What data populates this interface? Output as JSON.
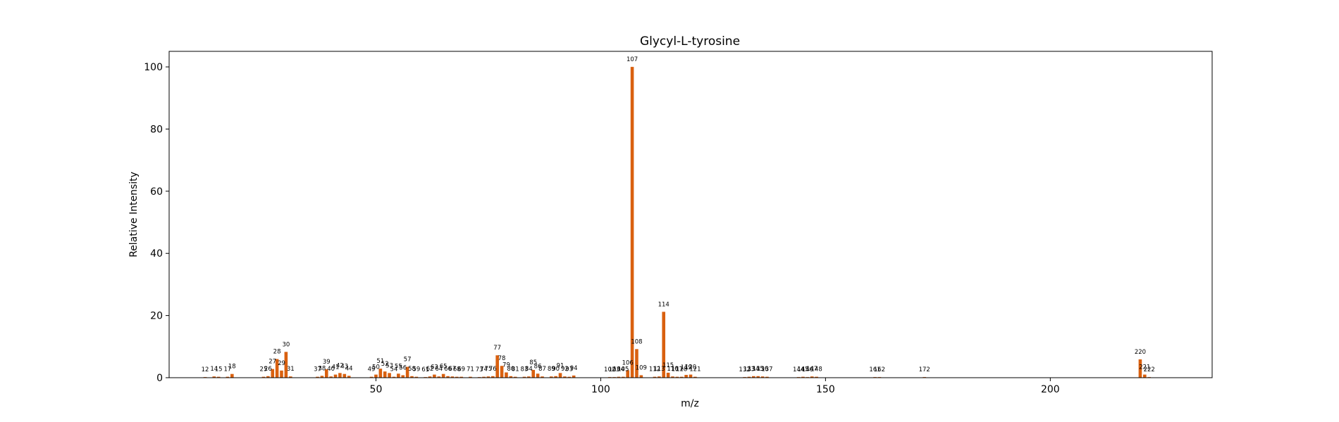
{
  "chart_data": {
    "type": "bar",
    "title": "Glycyl-L-tyrosine",
    "xlabel": "m/z",
    "ylabel": "Relative Intensity",
    "xlim": [
      4,
      236
    ],
    "ylim": [
      0,
      105
    ],
    "xticks": [
      50,
      100,
      150,
      200
    ],
    "yticks": [
      0,
      20,
      40,
      60,
      80,
      100
    ],
    "grid": false,
    "bar_color": "#d9600f",
    "peaks": [
      {
        "mz": 12,
        "intensity": 0.2
      },
      {
        "mz": 14,
        "intensity": 0.4
      },
      {
        "mz": 15,
        "intensity": 0.3
      },
      {
        "mz": 17,
        "intensity": 0.3
      },
      {
        "mz": 18,
        "intensity": 1.2
      },
      {
        "mz": 25,
        "intensity": 0.3
      },
      {
        "mz": 26,
        "intensity": 0.5
      },
      {
        "mz": 27,
        "intensity": 2.8
      },
      {
        "mz": 28,
        "intensity": 6.0
      },
      {
        "mz": 29,
        "intensity": 2.3
      },
      {
        "mz": 30,
        "intensity": 8.3
      },
      {
        "mz": 31,
        "intensity": 0.4
      },
      {
        "mz": 37,
        "intensity": 0.3
      },
      {
        "mz": 38,
        "intensity": 0.6
      },
      {
        "mz": 39,
        "intensity": 2.7
      },
      {
        "mz": 40,
        "intensity": 0.4
      },
      {
        "mz": 41,
        "intensity": 1.0
      },
      {
        "mz": 42,
        "intensity": 1.5
      },
      {
        "mz": 43,
        "intensity": 1.2
      },
      {
        "mz": 44,
        "intensity": 0.6
      },
      {
        "mz": 49,
        "intensity": 0.3
      },
      {
        "mz": 50,
        "intensity": 1.0
      },
      {
        "mz": 51,
        "intensity": 2.9
      },
      {
        "mz": 52,
        "intensity": 2.0
      },
      {
        "mz": 53,
        "intensity": 1.5
      },
      {
        "mz": 54,
        "intensity": 0.3
      },
      {
        "mz": 55,
        "intensity": 1.3
      },
      {
        "mz": 56,
        "intensity": 0.8
      },
      {
        "mz": 57,
        "intensity": 3.5
      },
      {
        "mz": 58,
        "intensity": 0.5
      },
      {
        "mz": 59,
        "intensity": 0.3
      },
      {
        "mz": 61,
        "intensity": 0.2
      },
      {
        "mz": 62,
        "intensity": 0.4
      },
      {
        "mz": 63,
        "intensity": 1.0
      },
      {
        "mz": 64,
        "intensity": 0.4
      },
      {
        "mz": 65,
        "intensity": 1.2
      },
      {
        "mz": 66,
        "intensity": 0.5
      },
      {
        "mz": 67,
        "intensity": 0.4
      },
      {
        "mz": 68,
        "intensity": 0.3
      },
      {
        "mz": 69,
        "intensity": 0.3
      },
      {
        "mz": 71,
        "intensity": 0.3
      },
      {
        "mz": 73,
        "intensity": 0.2
      },
      {
        "mz": 74,
        "intensity": 0.3
      },
      {
        "mz": 75,
        "intensity": 0.4
      },
      {
        "mz": 76,
        "intensity": 0.5
      },
      {
        "mz": 77,
        "intensity": 7.2
      },
      {
        "mz": 78,
        "intensity": 3.8
      },
      {
        "mz": 79,
        "intensity": 1.7
      },
      {
        "mz": 80,
        "intensity": 0.5
      },
      {
        "mz": 81,
        "intensity": 0.3
      },
      {
        "mz": 83,
        "intensity": 0.3
      },
      {
        "mz": 84,
        "intensity": 0.4
      },
      {
        "mz": 85,
        "intensity": 2.5
      },
      {
        "mz": 86,
        "intensity": 1.3
      },
      {
        "mz": 87,
        "intensity": 0.4
      },
      {
        "mz": 89,
        "intensity": 0.4
      },
      {
        "mz": 90,
        "intensity": 0.5
      },
      {
        "mz": 91,
        "intensity": 1.5
      },
      {
        "mz": 92,
        "intensity": 0.4
      },
      {
        "mz": 93,
        "intensity": 0.3
      },
      {
        "mz": 94,
        "intensity": 0.7
      },
      {
        "mz": 102,
        "intensity": 0.2
      },
      {
        "mz": 103,
        "intensity": 0.2
      },
      {
        "mz": 104,
        "intensity": 0.3
      },
      {
        "mz": 105,
        "intensity": 0.3
      },
      {
        "mz": 106,
        "intensity": 2.4
      },
      {
        "mz": 107,
        "intensity": 100
      },
      {
        "mz": 108,
        "intensity": 9.2
      },
      {
        "mz": 109,
        "intensity": 0.8
      },
      {
        "mz": 112,
        "intensity": 0.3
      },
      {
        "mz": 113,
        "intensity": 0.4
      },
      {
        "mz": 114,
        "intensity": 21.2
      },
      {
        "mz": 115,
        "intensity": 1.6
      },
      {
        "mz": 116,
        "intensity": 0.4
      },
      {
        "mz": 117,
        "intensity": 0.3
      },
      {
        "mz": 118,
        "intensity": 0.3
      },
      {
        "mz": 119,
        "intensity": 0.9
      },
      {
        "mz": 120,
        "intensity": 1.0
      },
      {
        "mz": 121,
        "intensity": 0.3
      },
      {
        "mz": 132,
        "intensity": 0.2
      },
      {
        "mz": 133,
        "intensity": 0.3
      },
      {
        "mz": 134,
        "intensity": 0.5
      },
      {
        "mz": 135,
        "intensity": 0.5
      },
      {
        "mz": 136,
        "intensity": 0.4
      },
      {
        "mz": 137,
        "intensity": 0.3
      },
      {
        "mz": 144,
        "intensity": 0.2
      },
      {
        "mz": 145,
        "intensity": 0.3
      },
      {
        "mz": 146,
        "intensity": 0.2
      },
      {
        "mz": 147,
        "intensity": 0.4
      },
      {
        "mz": 148,
        "intensity": 0.3
      },
      {
        "mz": 161,
        "intensity": 0.2
      },
      {
        "mz": 162,
        "intensity": 0.2
      },
      {
        "mz": 172,
        "intensity": 0.2
      },
      {
        "mz": 220,
        "intensity": 5.9
      },
      {
        "mz": 221,
        "intensity": 1.0
      },
      {
        "mz": 222,
        "intensity": 0.2
      }
    ]
  }
}
